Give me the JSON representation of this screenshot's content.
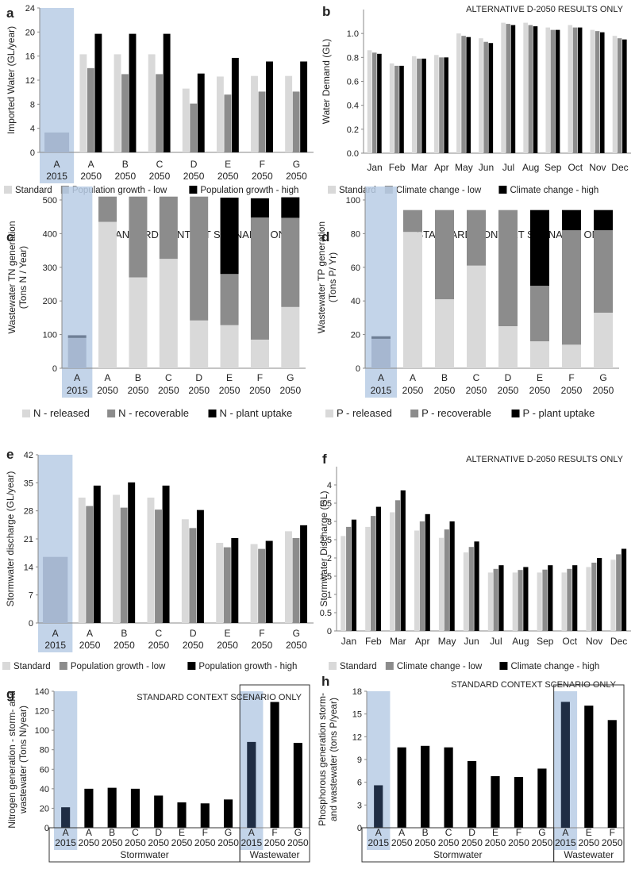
{
  "colors": {
    "standard": "#d9d9d9",
    "low": "#8c8c8c",
    "high": "#000000",
    "highlight": "#b9cde5",
    "highlight_bar": "#a6b7d0",
    "dark_bar": "#1f2d44"
  },
  "chart_data": [
    {
      "id": "a",
      "type": "bar",
      "panel_letter": "a",
      "ylabel": "Imported Water  (GL/year)",
      "ylim": [
        0,
        24
      ],
      "yticks": [
        0,
        4,
        8,
        12,
        16,
        20,
        24
      ],
      "categories": [
        [
          "A",
          "2015"
        ],
        [
          "A",
          "2050"
        ],
        [
          "B",
          "2050"
        ],
        [
          "C",
          "2050"
        ],
        [
          "D",
          "2050"
        ],
        [
          "E",
          "2050"
        ],
        [
          "F",
          "2050"
        ],
        [
          "G",
          "2050"
        ]
      ],
      "highlight_index": 0,
      "single": {
        "index": 0,
        "value": 3.3
      },
      "series": [
        {
          "name": "Standard",
          "key": "standard",
          "values": [
            null,
            16.3,
            16.3,
            16.3,
            10.6,
            12.6,
            12.7,
            12.7
          ]
        },
        {
          "name": "Population growth - low",
          "key": "low",
          "values": [
            null,
            14,
            13,
            13,
            8.1,
            9.6,
            10.1,
            10.1
          ]
        },
        {
          "name": "Population growth - high",
          "key": "high",
          "values": [
            null,
            19.7,
            19.7,
            19.7,
            13.1,
            15.7,
            15.1,
            15.1
          ]
        }
      ]
    },
    {
      "id": "b",
      "type": "bar",
      "panel_letter": "b",
      "title": "ALTERNATIVE  D-2050 RESULTS ONLY",
      "ylabel": "Water Demand  (GL)",
      "ylim": [
        0,
        1.2
      ],
      "yticks": [
        "0.0",
        "0.2",
        "0.4",
        "0.6",
        "0.8",
        "1.0"
      ],
      "categories": [
        "Jan",
        "Feb",
        "Mar",
        "Apr",
        "May",
        "Jun",
        "Jul",
        "Aug",
        "Sep",
        "Oct",
        "Nov",
        "Dec"
      ],
      "series": [
        {
          "name": "Standard",
          "key": "standard",
          "values": [
            0.86,
            0.75,
            0.81,
            0.82,
            1.0,
            0.96,
            1.09,
            1.09,
            1.05,
            1.07,
            1.03,
            0.98
          ]
        },
        {
          "name": "Climate change - low",
          "key": "low",
          "values": [
            0.84,
            0.73,
            0.79,
            0.8,
            0.98,
            0.93,
            1.08,
            1.07,
            1.03,
            1.05,
            1.02,
            0.96
          ]
        },
        {
          "name": "Climate change - high",
          "key": "high",
          "values": [
            0.83,
            0.73,
            0.79,
            0.8,
            0.97,
            0.92,
            1.07,
            1.06,
            1.03,
            1.05,
            1.01,
            0.95
          ]
        }
      ]
    },
    {
      "id": "c",
      "type": "stacked_bar",
      "panel_letter": "c",
      "title": "STANDARD CONTEXT SCENARIO ONLY",
      "ylabel": "Wastewater TN generation\n(Tons N / Year)",
      "ylim": [
        0,
        540
      ],
      "yticks": [
        0,
        100,
        200,
        300,
        400,
        500
      ],
      "categories": [
        [
          "A",
          "2015"
        ],
        [
          "A",
          "2050"
        ],
        [
          "B",
          "2050"
        ],
        [
          "C",
          "2050"
        ],
        [
          "D",
          "2050"
        ],
        [
          "E",
          "2050"
        ],
        [
          "F",
          "2050"
        ],
        [
          "G",
          "2050"
        ]
      ],
      "highlight_index": 0,
      "series": [
        {
          "name": "N - released",
          "key": "standard",
          "values": [
            90,
            435,
            270,
            325,
            142,
            128,
            85,
            182
          ]
        },
        {
          "name": "N - recoverable",
          "key": "low",
          "values": [
            8,
            75,
            240,
            185,
            368,
            152,
            363,
            265
          ]
        },
        {
          "name": "N - plant uptake",
          "key": "high",
          "values": [
            0,
            0,
            0,
            0,
            0,
            227,
            57,
            61
          ]
        }
      ]
    },
    {
      "id": "d",
      "type": "stacked_bar",
      "panel_letter": "d",
      "title": "STANDARD CONTEXT SCENARIO ONLY",
      "ylabel": "Wastewater TP generation\n(Tons P/ Yr)",
      "ylim": [
        0,
        108
      ],
      "yticks": [
        0,
        20,
        40,
        60,
        80,
        100
      ],
      "categories": [
        [
          "A",
          "2015"
        ],
        [
          "A",
          "2050"
        ],
        [
          "B",
          "2050"
        ],
        [
          "C",
          "2050"
        ],
        [
          "D",
          "2050"
        ],
        [
          "E",
          "2050"
        ],
        [
          "F",
          "2050"
        ],
        [
          "G",
          "2050"
        ]
      ],
      "highlight_index": 0,
      "series": [
        {
          "name": "P - released",
          "key": "standard",
          "values": [
            17.5,
            81,
            41,
            61,
            25,
            16,
            14,
            33
          ]
        },
        {
          "name": "P - recoverable",
          "key": "low",
          "values": [
            1.5,
            13,
            53,
            33,
            69,
            33,
            68,
            49
          ]
        },
        {
          "name": "P - plant uptake",
          "key": "high",
          "values": [
            0,
            0,
            0,
            0,
            0,
            45,
            12,
            12
          ]
        }
      ]
    },
    {
      "id": "e",
      "type": "bar",
      "panel_letter": "e",
      "ylabel": "Stormwater discharge (GL/year)",
      "ylim": [
        0,
        42
      ],
      "yticks": [
        0,
        7,
        14,
        21,
        28,
        35,
        42
      ],
      "categories": [
        [
          "A",
          "2015"
        ],
        [
          "A",
          "2050"
        ],
        [
          "B",
          "2050"
        ],
        [
          "C",
          "2050"
        ],
        [
          "D",
          "2050"
        ],
        [
          "E",
          "2050"
        ],
        [
          "F",
          "2050"
        ],
        [
          "G",
          "2050"
        ]
      ],
      "highlight_index": 0,
      "single": {
        "index": 0,
        "value": 16.5
      },
      "series": [
        {
          "name": "Standard",
          "key": "standard",
          "values": [
            null,
            31.3,
            32,
            31.3,
            25.9,
            20,
            19.7,
            22.9
          ]
        },
        {
          "name": "Population growth - low",
          "key": "low",
          "values": [
            null,
            29.2,
            28.8,
            28.3,
            23.7,
            18.9,
            18.5,
            21.2
          ]
        },
        {
          "name": "Population growth - high",
          "key": "high",
          "values": [
            null,
            34.3,
            35.1,
            34.3,
            28.2,
            21.2,
            20.5,
            24.4
          ]
        }
      ]
    },
    {
      "id": "f",
      "type": "bar",
      "panel_letter": "f",
      "title": "ALTERNATIVE  D-2050 RESULTS ONLY",
      "ylabel": "Stormwater Discharge (GL)",
      "ylim": [
        0,
        4.5
      ],
      "yticks": [
        0,
        0.5,
        1,
        1.5,
        2,
        2.5,
        3,
        3.5,
        4
      ],
      "categories": [
        "Jan",
        "Feb",
        "Mar",
        "Apr",
        "May",
        "Jun",
        "Jul",
        "Aug",
        "Sep",
        "Oct",
        "Nov",
        "Dec"
      ],
      "series": [
        {
          "name": "Standard",
          "key": "standard",
          "values": [
            2.6,
            2.85,
            3.25,
            2.75,
            2.55,
            2.15,
            1.6,
            1.6,
            1.6,
            1.6,
            1.75,
            1.95
          ]
        },
        {
          "name": "Climate change - low",
          "key": "low",
          "values": [
            2.85,
            3.15,
            3.58,
            3.0,
            2.78,
            2.3,
            1.7,
            1.67,
            1.68,
            1.7,
            1.87,
            2.1
          ]
        },
        {
          "name": "Climate change - high",
          "key": "high",
          "values": [
            3.05,
            3.4,
            3.85,
            3.2,
            3.0,
            2.45,
            1.8,
            1.75,
            1.8,
            1.8,
            2.0,
            2.25
          ]
        }
      ]
    },
    {
      "id": "g",
      "type": "bar",
      "panel_letter": "g",
      "title": "STANDARD CONTEXT SCENARIO ONLY",
      "ylabel": "Nitrogen generation - storm- and\nwastewater (Tons N/year)",
      "ylim": [
        0,
        140
      ],
      "yticks": [
        0,
        20,
        40,
        60,
        80,
        100,
        120,
        140
      ],
      "categories": [
        [
          "A",
          "2015"
        ],
        [
          "A",
          "2050"
        ],
        [
          "B",
          "2050"
        ],
        [
          "C",
          "2050"
        ],
        [
          "D",
          "2050"
        ],
        [
          "E",
          "2050"
        ],
        [
          "F",
          "2050"
        ],
        [
          "G",
          "2050"
        ],
        [
          "A",
          "2015"
        ],
        [
          "F",
          "2050"
        ],
        [
          "G",
          "2050"
        ]
      ],
      "highlight_indices": [
        0,
        8
      ],
      "groups": [
        {
          "label": "Stormwater",
          "from": 0,
          "to": 7
        },
        {
          "label": "Wastewater",
          "from": 8,
          "to": 10
        }
      ],
      "values": [
        21,
        40,
        41,
        40,
        33,
        26,
        25,
        29,
        88,
        129,
        87
      ]
    },
    {
      "id": "h",
      "type": "bar",
      "panel_letter": "h",
      "title": "STANDARD CONTEXT SCENARIO ONLY",
      "ylabel": "Phosphorous generation storm-\nand wastewater (tons P/year)",
      "ylim": [
        0,
        18
      ],
      "yticks": [
        0,
        3,
        6,
        9,
        12,
        15,
        18
      ],
      "categories": [
        [
          "A",
          "2015"
        ],
        [
          "A",
          "2050"
        ],
        [
          "B",
          "2050"
        ],
        [
          "C",
          "2050"
        ],
        [
          "D",
          "2050"
        ],
        [
          "E",
          "2050"
        ],
        [
          "F",
          "2050"
        ],
        [
          "G",
          "2050"
        ],
        [
          "A",
          "2015"
        ],
        [
          "E",
          "2050"
        ],
        [
          "F",
          "2050"
        ]
      ],
      "highlight_indices": [
        0,
        8
      ],
      "groups": [
        {
          "label": "Stormwater",
          "from": 0,
          "to": 7
        },
        {
          "label": "Wastewater",
          "from": 8,
          "to": 10
        }
      ],
      "values": [
        5.6,
        10.6,
        10.8,
        10.6,
        8.8,
        6.8,
        6.7,
        7.8,
        16.6,
        16.1,
        14.2
      ]
    }
  ]
}
